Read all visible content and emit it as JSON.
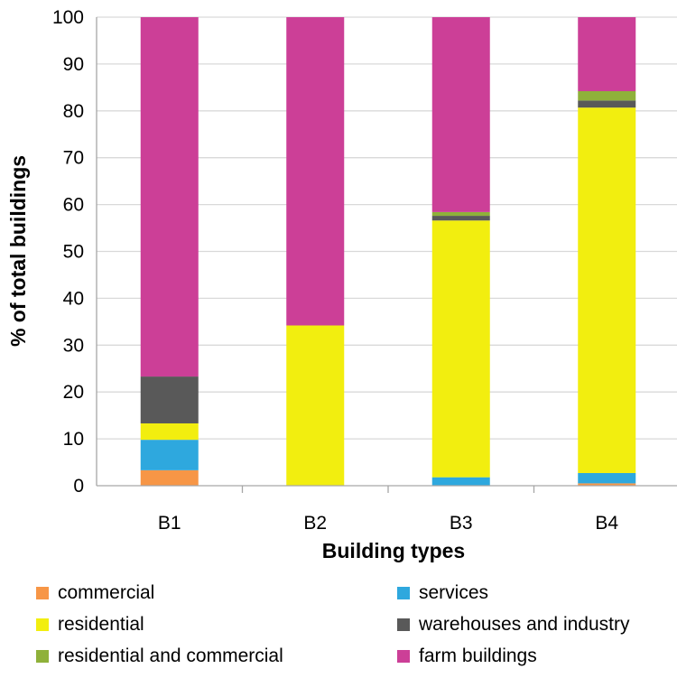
{
  "chart_data": {
    "type": "bar",
    "stacked": true,
    "title": "",
    "xlabel": "Building types",
    "ylabel": "% of total buildings",
    "ylim": [
      0,
      100
    ],
    "yticks": [
      0,
      10,
      20,
      30,
      40,
      50,
      60,
      70,
      80,
      90,
      100
    ],
    "grid": true,
    "legend_position": "bottom",
    "categories": [
      "B1",
      "B2",
      "B3",
      "B4"
    ],
    "series": [
      {
        "name": "commercial",
        "color": "#F79646",
        "values": [
          3.3,
          0,
          0,
          0.5
        ]
      },
      {
        "name": "services",
        "color": "#2EA8DE",
        "values": [
          6.5,
          0,
          1.8,
          2.2
        ]
      },
      {
        "name": "residential",
        "color": "#F2EE0F",
        "values": [
          3.5,
          34.2,
          54.8,
          78.0
        ]
      },
      {
        "name": "warehouses and industry",
        "color": "#595959",
        "values": [
          10.0,
          0,
          1.0,
          1.5
        ]
      },
      {
        "name": "residential and commercial",
        "color": "#8FB13A",
        "values": [
          0,
          0,
          0.8,
          2.0
        ]
      },
      {
        "name": "farm buildings",
        "color": "#CC3F97",
        "values": [
          76.7,
          65.8,
          41.6,
          15.8
        ]
      }
    ]
  }
}
